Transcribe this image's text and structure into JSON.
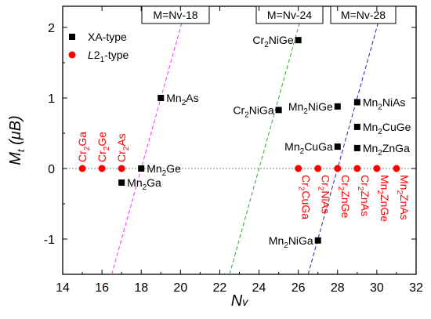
{
  "chart_data": {
    "type": "scatter",
    "xlabel": "Nv",
    "ylabel": "Mt (μB)",
    "xlim": [
      14,
      32
    ],
    "ylim": [
      -1.5,
      2.3
    ],
    "x_ticks": [
      14,
      16,
      18,
      20,
      22,
      24,
      26,
      28,
      30,
      32
    ],
    "y_ticks": [
      -1,
      0,
      1,
      2
    ],
    "grid": false,
    "legend_position": "top-left",
    "series": [
      {
        "name": "XA-type",
        "marker": "square",
        "color": "#000000",
        "label_color": "#000000",
        "points": [
          {
            "label": "Mn2As",
            "x": 19,
            "y": 1.0
          },
          {
            "label": "Mn2Ge",
            "x": 18,
            "y": 0.0
          },
          {
            "label": "Mn2Ga",
            "x": 17,
            "y": -0.2
          },
          {
            "label": "Cr2NiGe",
            "x": 26,
            "y": 1.82
          },
          {
            "label": "Cr2NiGa",
            "x": 25,
            "y": 0.83
          },
          {
            "label": "Mn2NiGe",
            "x": 28,
            "y": 0.88
          },
          {
            "label": "Mn2CuGa",
            "x": 28,
            "y": 0.31
          },
          {
            "label": "Mn2NiAs",
            "x": 29,
            "y": 0.94
          },
          {
            "label": "Mn2CuGe",
            "x": 29,
            "y": 0.59
          },
          {
            "label": "Mn2ZnGa",
            "x": 29,
            "y": 0.29
          },
          {
            "label": "Mn2NiGa",
            "x": 27,
            "y": -1.02
          }
        ]
      },
      {
        "name": "L21-type",
        "marker": "circle",
        "color": "#ff0000",
        "label_color": "#ff0000",
        "points": [
          {
            "label": "Cr2Ga",
            "x": 15,
            "y": 0
          },
          {
            "label": "Cr2Ge",
            "x": 16,
            "y": 0
          },
          {
            "label": "Cr2As",
            "x": 17,
            "y": 0
          },
          {
            "label": "Cr2CuGa",
            "x": 26,
            "y": 0
          },
          {
            "label": "Cr2NiAs",
            "x": 27,
            "y": 0
          },
          {
            "label": "Cr2ZnGe",
            "x": 28,
            "y": 0
          },
          {
            "label": "Cr2ZnAs",
            "x": 29,
            "y": 0
          },
          {
            "label": "Mn2ZnGe",
            "x": 30,
            "y": 0
          },
          {
            "label": "Mn2ZnAs",
            "x": 31,
            "y": 0
          }
        ]
      }
    ],
    "reference_lines": [
      {
        "label": "M=Nv-18",
        "offset": 18,
        "color": "#ff33ff"
      },
      {
        "label": "M=Nv-24",
        "offset": 24,
        "color": "#33aa33"
      },
      {
        "label": "M=Nv-28",
        "offset": 28,
        "color": "#2222bb"
      }
    ],
    "zero_line": true
  }
}
